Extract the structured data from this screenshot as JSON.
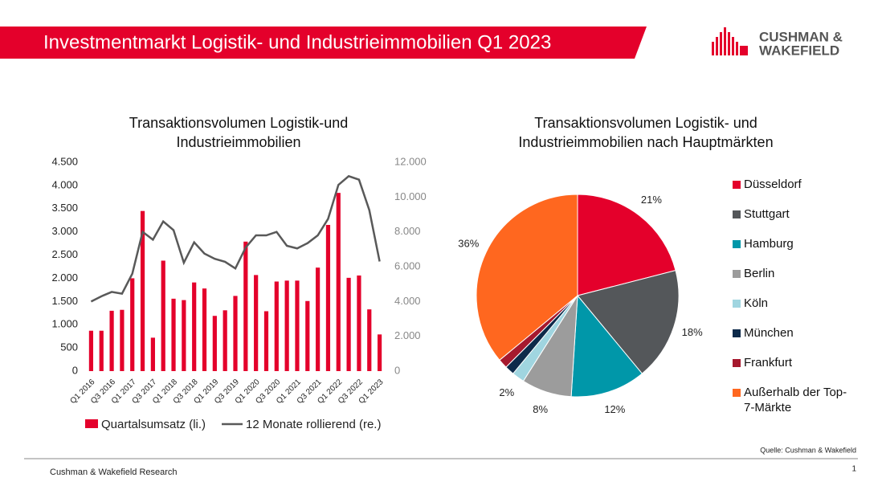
{
  "header": {
    "title": "Investmentmarkt Logistik- und Industrieimmobilien Q1 2023",
    "logo": [
      "CUSHMAN &",
      "WAKEFIELD"
    ]
  },
  "source": "Quelle: Cushman & Wakefield",
  "footer": {
    "text": "Cushman & Wakefield Research",
    "page": "1"
  },
  "chart_data": [
    {
      "type": "bar-line",
      "title": "Transaktionsvolumen Logistik-und Industrieimmobilien",
      "categories": [
        "Q1 2016",
        null,
        "Q3 2016",
        null,
        "Q1 2017",
        null,
        "Q3 2017",
        null,
        "Q1 2018",
        null,
        "Q3 2018",
        null,
        "Q1 2019",
        null,
        "Q3 2019",
        null,
        "Q1 2020",
        null,
        "Q3 2020",
        null,
        "Q1 2021",
        null,
        "Q3 2021",
        null,
        "Q1 2022",
        null,
        "Q3 2022",
        null,
        "Q1 2023"
      ],
      "series": [
        {
          "name": "Quartalsumsatz (li.)",
          "type": "bar",
          "color": "#e4002b",
          "values": [
            870,
            870,
            1300,
            1320,
            2000,
            3450,
            720,
            2380,
            1560,
            1530,
            1910,
            1780,
            1190,
            1310,
            1620,
            2790,
            2070,
            1290,
            1930,
            1950,
            1950,
            1510,
            2230,
            3150,
            3840,
            2010,
            2060,
            1330,
            790
          ]
        },
        {
          "name": "12 Monate rollierend (re.)",
          "type": "line",
          "axis": "y2",
          "color": "#595959",
          "values": [
            4000,
            4300,
            4550,
            4450,
            5600,
            8000,
            7550,
            8600,
            8100,
            6230,
            7400,
            6750,
            6450,
            6280,
            5900,
            7100,
            7800,
            7800,
            8000,
            7200,
            7050,
            7350,
            7800,
            8750,
            10700,
            11200,
            11000,
            9250,
            6300
          ]
        }
      ],
      "ylim": [
        0,
        4500
      ],
      "yticks": [
        0,
        500,
        {
          "value": 1000,
          "label": "1.000"
        },
        {
          "value": 1500,
          "label": "1.500"
        },
        {
          "value": 2000,
          "label": "2.000"
        },
        {
          "value": 2500,
          "label": "2.500"
        },
        {
          "value": 3000,
          "label": "3.000"
        },
        {
          "value": 3500,
          "label": "3.500"
        },
        {
          "value": 4000,
          "label": "4.000"
        },
        {
          "value": 4500,
          "label": "4.500"
        }
      ],
      "y2lim": [
        0,
        12000
      ],
      "y2ticks": [
        0,
        {
          "value": 2000,
          "label": "2.000"
        },
        {
          "value": 4000,
          "label": "4.000"
        },
        {
          "value": 6000,
          "label": "6.000"
        },
        {
          "value": 8000,
          "label": "8.000"
        },
        {
          "value": 10000,
          "label": "10.000"
        },
        {
          "value": 12000,
          "label": "12.000"
        }
      ],
      "grid": false,
      "legend": "bottom"
    },
    {
      "type": "pie",
      "title": "Transaktionsvolumen Logistik- und Industrieimmobilien nach Hauptmärkten",
      "categories": [
        "Düsseldorf",
        "Stuttgart",
        "Hamburg",
        "Berlin",
        "Köln",
        "München",
        "Frankfurt",
        "Außerhalb der Top-7-Märkte"
      ],
      "values": [
        21,
        18,
        12,
        8,
        2,
        1.5,
        1.5,
        36
      ],
      "value_labels": [
        "21%",
        "18%",
        "12%",
        "8%",
        "2%",
        null,
        null,
        "36%"
      ],
      "colors": [
        "#e4002b",
        "#54575a",
        "#0097a9",
        "#9c9c9c",
        "#a0d5e0",
        "#0d2a4a",
        "#a6192e",
        "#ff671f"
      ],
      "legend": "right"
    }
  ]
}
